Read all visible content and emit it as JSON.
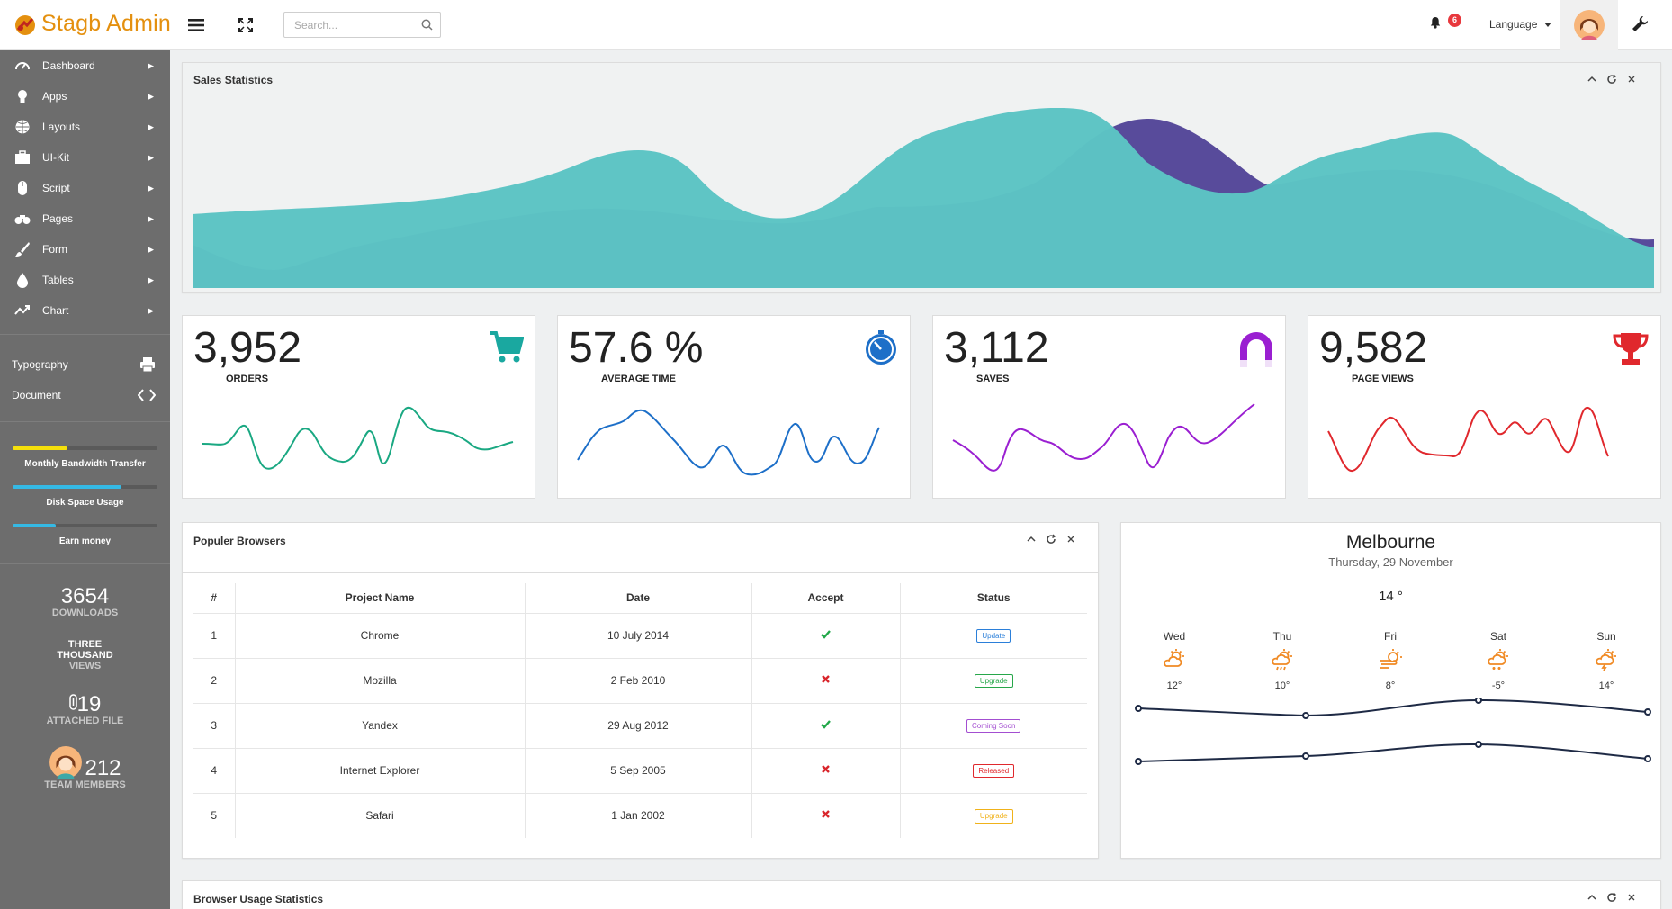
{
  "app": {
    "logo_text": "Stagb Admin",
    "search_placeholder": "Search...",
    "notification_count": "6",
    "language_label": "Language"
  },
  "sidebar": {
    "menu": [
      {
        "label": "Dashboard",
        "icon": "dashboard-icon"
      },
      {
        "label": "Apps",
        "icon": "lightbulb-icon"
      },
      {
        "label": "Layouts",
        "icon": "globe-icon"
      },
      {
        "label": "UI-Kit",
        "icon": "briefcase-icon"
      },
      {
        "label": "Script",
        "icon": "mouse-icon"
      },
      {
        "label": "Pages",
        "icon": "binoculars-icon"
      },
      {
        "label": "Form",
        "icon": "paintbrush-icon"
      },
      {
        "label": "Tables",
        "icon": "drop-icon"
      },
      {
        "label": "Chart",
        "icon": "trending-icon"
      }
    ],
    "secondary": [
      {
        "label": "Typography",
        "icon": "printer-icon"
      },
      {
        "label": "Document",
        "icon": "code-icon"
      }
    ],
    "progress": [
      {
        "label": "Monthly Bandwidth Transfer",
        "value": 0.38,
        "color": "#f5e00b"
      },
      {
        "label": "Disk Space Usage",
        "value": 0.75,
        "color": "#35b9e4"
      },
      {
        "label": "Earn money",
        "value": 0.3,
        "color": "#35b9e4"
      }
    ],
    "stats": {
      "downloads_num": "3654",
      "downloads_lbl": "DOWNLOADS",
      "views_num_line1": "THREE",
      "views_num_line2": "THOUSAND",
      "views_lbl": "VIEWS",
      "files_num": "19",
      "files_lbl": "ATTACHED FILE",
      "members_num": "212",
      "members_lbl": "TEAM MEMBERS"
    }
  },
  "sales": {
    "title": "Sales Statistics",
    "colors": {
      "purple": "#584b9b",
      "teal": "#5cc4c4"
    }
  },
  "stat_cards": [
    {
      "value": "3,952",
      "label": "ORDERS",
      "icon": "cart-icon",
      "color": "#1aa882"
    },
    {
      "value": "57.6 %",
      "label": "AVERAGE TIME",
      "icon": "stopwatch-icon",
      "color": "#1d6fc8"
    },
    {
      "value": "3,112",
      "label": "SAVES",
      "icon": "magnet-icon",
      "color": "#9a1fd1"
    },
    {
      "value": "9,582",
      "label": "PAGE VIEWS",
      "icon": "trophy-icon",
      "color": "#e0282d"
    }
  ],
  "browsers": {
    "title": "Populer Browsers",
    "columns": [
      "#",
      "Project Name",
      "Date",
      "Accept",
      "Status"
    ],
    "rows": [
      {
        "num": "1",
        "name": "Chrome",
        "date": "10 July 2014",
        "accepted": true,
        "status": "Update",
        "status_color": "#2b7fd9"
      },
      {
        "num": "2",
        "name": "Mozilla",
        "date": "2 Feb 2010",
        "accepted": false,
        "status": "Upgrade",
        "status_color": "#27a74a"
      },
      {
        "num": "3",
        "name": "Yandex",
        "date": "29 Aug 2012",
        "accepted": true,
        "status": "Coming Soon",
        "status_color": "#a34ed1"
      },
      {
        "num": "4",
        "name": "Internet Explorer",
        "date": "5 Sep 2005",
        "accepted": false,
        "status": "Released",
        "status_color": "#e0282d"
      },
      {
        "num": "5",
        "name": "Safari",
        "date": "1 Jan 2002",
        "accepted": false,
        "status": "Upgrade",
        "status_color": "#f0b21a"
      }
    ]
  },
  "weather": {
    "city": "Melbourne",
    "date": "Thursday, 29 November",
    "temp": "14 °",
    "days": [
      {
        "name": "Wed",
        "temp": "12°",
        "icon": "partly-cloudy-icon"
      },
      {
        "name": "Thu",
        "temp": "10°",
        "icon": "sun-rain-icon"
      },
      {
        "name": "Fri",
        "temp": "8°",
        "icon": "windy-sun-icon"
      },
      {
        "name": "Sat",
        "temp": "-5°",
        "icon": "sun-snow-icon"
      },
      {
        "name": "Sun",
        "temp": "14°",
        "icon": "sun-storm-icon"
      }
    ],
    "line_color": "#1e2a45"
  },
  "usage": {
    "title": "Browser Usage Statistics"
  }
}
